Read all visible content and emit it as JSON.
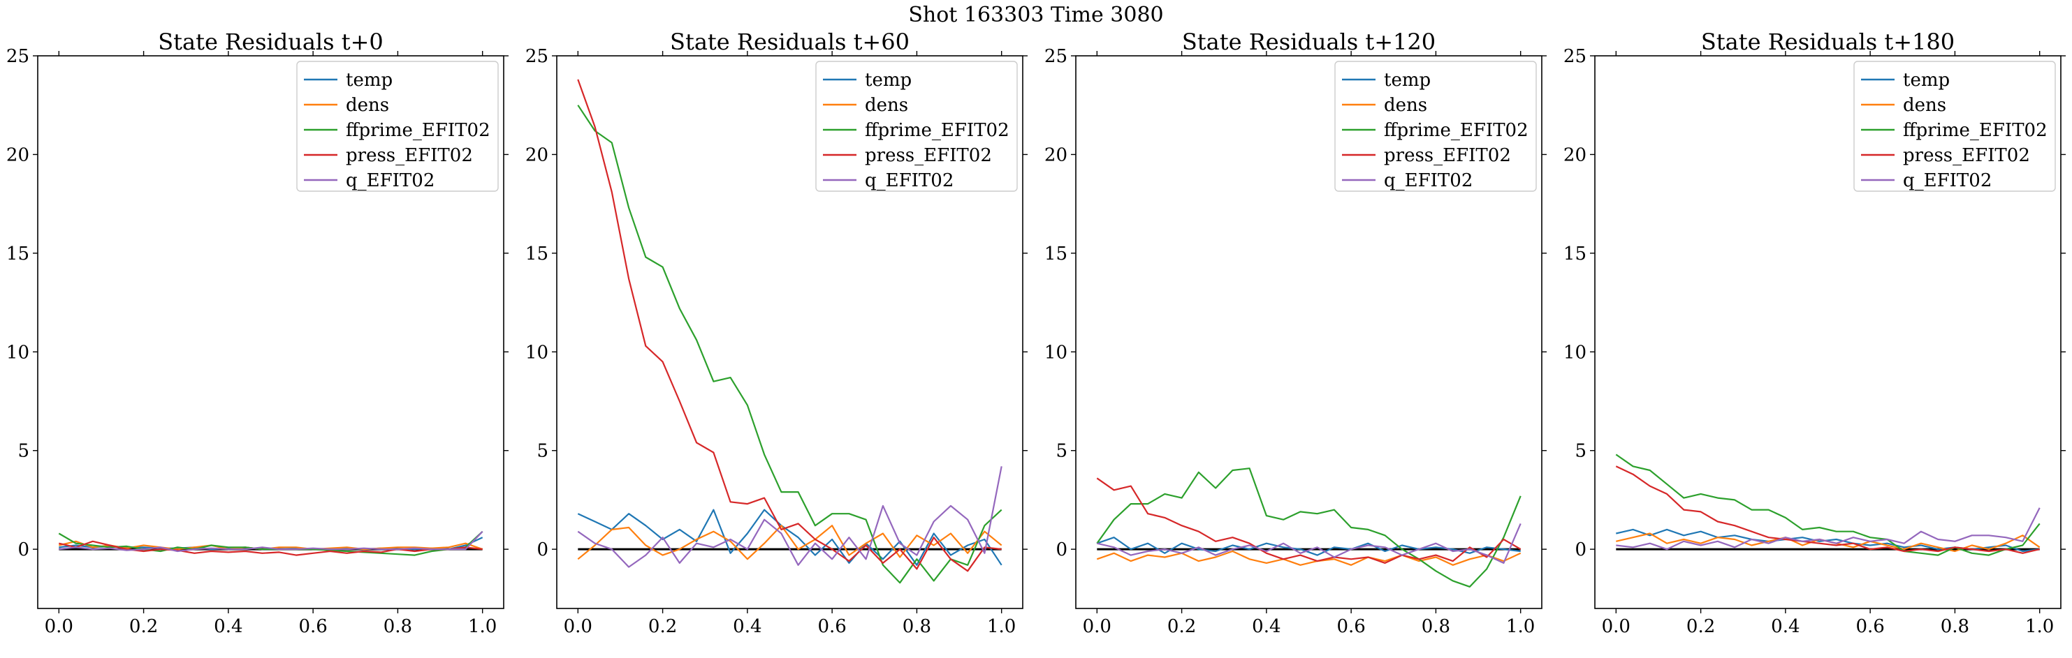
{
  "suptitle": "Shot 163303   Time 3080",
  "colors": {
    "temp": "#1f77b4",
    "dens": "#ff7f0e",
    "ffprime_EFIT02": "#2ca02c",
    "press_EFIT02": "#d62728",
    "q_EFIT02": "#9467bd",
    "zero_line": "#000000"
  },
  "chart_data": [
    {
      "type": "line",
      "title": "State Residuals t+0",
      "xlabel": "",
      "ylabel": "",
      "xlim": [
        -0.05,
        1.05
      ],
      "ylim": [
        -3,
        25
      ],
      "xticks": [
        "0.0",
        "0.2",
        "0.4",
        "0.6",
        "0.8",
        "1.0"
      ],
      "yticks": [
        "0",
        "5",
        "10",
        "15",
        "20",
        "25"
      ],
      "grid": false,
      "legend": "top-right",
      "x": [
        0.0,
        0.04,
        0.08,
        0.12,
        0.16,
        0.2,
        0.24,
        0.28,
        0.32,
        0.36,
        0.4,
        0.44,
        0.48,
        0.52,
        0.56,
        0.6,
        0.64,
        0.68,
        0.72,
        0.76,
        0.8,
        0.84,
        0.88,
        0.92,
        0.96,
        1.0
      ],
      "series": [
        {
          "name": "temp",
          "values": [
            0.1,
            0.2,
            0.1,
            0.15,
            0.1,
            0.1,
            0.05,
            0.05,
            0.1,
            0.0,
            0.05,
            0.1,
            0.0,
            0.0,
            0.05,
            0.0,
            0.0,
            0.05,
            0.0,
            0.05,
            0.0,
            0.0,
            0.05,
            0.0,
            0.2,
            0.6
          ]
        },
        {
          "name": "dens",
          "values": [
            0.2,
            0.4,
            0.1,
            0.2,
            0.05,
            0.2,
            0.1,
            0.0,
            0.1,
            0.2,
            0.0,
            0.1,
            0.0,
            0.1,
            0.1,
            0.0,
            0.05,
            0.1,
            0.0,
            0.05,
            0.1,
            0.1,
            0.05,
            0.1,
            0.3,
            0.0
          ]
        },
        {
          "name": "ffprime_EFIT02",
          "values": [
            0.8,
            0.3,
            0.2,
            0.1,
            0.15,
            0.0,
            -0.1,
            0.1,
            0.0,
            0.2,
            0.1,
            0.1,
            0.0,
            0.0,
            0.0,
            0.0,
            -0.05,
            -0.1,
            -0.15,
            -0.2,
            -0.25,
            -0.3,
            -0.1,
            0.0,
            0.1,
            0.9
          ]
        },
        {
          "name": "press_EFIT02",
          "values": [
            0.3,
            0.1,
            0.4,
            0.2,
            0.0,
            -0.1,
            0.0,
            -0.05,
            -0.2,
            -0.1,
            -0.15,
            -0.1,
            -0.2,
            -0.15,
            -0.3,
            -0.2,
            -0.1,
            -0.2,
            -0.1,
            -0.15,
            0.0,
            -0.1,
            0.0,
            0.0,
            0.1,
            0.0
          ]
        },
        {
          "name": "q_EFIT02",
          "values": [
            0.0,
            0.1,
            0.0,
            0.05,
            -0.05,
            0.0,
            0.1,
            -0.1,
            0.0,
            0.05,
            0.0,
            0.0,
            0.1,
            0.0,
            0.0,
            0.05,
            0.0,
            0.0,
            0.05,
            0.0,
            0.0,
            0.05,
            0.0,
            0.0,
            0.0,
            0.9
          ]
        }
      ]
    },
    {
      "type": "line",
      "title": "State Residuals t+60",
      "xlabel": "",
      "ylabel": "",
      "xlim": [
        -0.05,
        1.05
      ],
      "ylim": [
        -3,
        25
      ],
      "xticks": [
        "0.0",
        "0.2",
        "0.4",
        "0.6",
        "0.8",
        "1.0"
      ],
      "yticks": [
        "0",
        "5",
        "10",
        "15",
        "20",
        "25"
      ],
      "grid": false,
      "legend": "top-right",
      "x": [
        0.0,
        0.04,
        0.08,
        0.12,
        0.16,
        0.2,
        0.24,
        0.28,
        0.32,
        0.36,
        0.4,
        0.44,
        0.48,
        0.52,
        0.56,
        0.6,
        0.64,
        0.68,
        0.72,
        0.76,
        0.8,
        0.84,
        0.88,
        0.92,
        0.96,
        1.0
      ],
      "series": [
        {
          "name": "temp",
          "values": [
            1.8,
            1.4,
            1.0,
            1.8,
            1.2,
            0.5,
            1.0,
            0.4,
            2.0,
            -0.2,
            0.8,
            2.0,
            1.2,
            0.6,
            -0.3,
            0.5,
            -0.7,
            0.3,
            -0.5,
            0.4,
            -0.8,
            0.8,
            -0.3,
            0.2,
            0.5,
            -0.8
          ]
        },
        {
          "name": "dens",
          "values": [
            -0.5,
            0.2,
            1.0,
            1.1,
            0.2,
            -0.3,
            0.0,
            0.5,
            0.9,
            0.4,
            -0.5,
            0.3,
            1.2,
            0.0,
            0.5,
            1.2,
            -0.3,
            0.3,
            0.8,
            -0.4,
            0.7,
            0.2,
            0.8,
            -0.2,
            0.9,
            0.2
          ]
        },
        {
          "name": "ffprime_EFIT02",
          "values": [
            22.5,
            21.2,
            20.6,
            17.3,
            14.8,
            14.3,
            12.2,
            10.6,
            8.5,
            8.7,
            7.3,
            4.8,
            2.9,
            2.9,
            1.2,
            1.8,
            1.8,
            1.5,
            -0.8,
            -1.7,
            -0.5,
            -1.6,
            -0.5,
            -0.8,
            1.2,
            2.0
          ]
        },
        {
          "name": "press_EFIT02",
          "values": [
            23.8,
            21.4,
            18.1,
            13.7,
            10.3,
            9.5,
            7.5,
            5.4,
            4.9,
            2.4,
            2.3,
            2.6,
            1.0,
            1.3,
            0.5,
            0.0,
            -0.6,
            0.2,
            -0.7,
            0.0,
            -1.0,
            0.6,
            -0.5,
            -1.1,
            0.1,
            0.0
          ]
        },
        {
          "name": "q_EFIT02",
          "values": [
            0.9,
            0.3,
            0.0,
            -0.9,
            -0.3,
            0.6,
            -0.7,
            0.3,
            0.1,
            0.5,
            0.0,
            1.5,
            0.8,
            -0.8,
            0.3,
            -0.5,
            0.6,
            -0.5,
            2.2,
            0.3,
            -0.3,
            1.4,
            2.2,
            1.5,
            -0.2,
            4.2
          ]
        }
      ]
    },
    {
      "type": "line",
      "title": "State Residuals t+120",
      "xlabel": "",
      "ylabel": "",
      "xlim": [
        -0.05,
        1.05
      ],
      "ylim": [
        -3,
        25
      ],
      "xticks": [
        "0.0",
        "0.2",
        "0.4",
        "0.6",
        "0.8",
        "1.0"
      ],
      "yticks": [
        "0",
        "5",
        "10",
        "15",
        "20",
        "25"
      ],
      "grid": false,
      "legend": "top-right",
      "x": [
        0.0,
        0.04,
        0.08,
        0.12,
        0.16,
        0.2,
        0.24,
        0.28,
        0.32,
        0.36,
        0.4,
        0.44,
        0.48,
        0.52,
        0.56,
        0.6,
        0.64,
        0.68,
        0.72,
        0.76,
        0.8,
        0.84,
        0.88,
        0.92,
        0.96,
        1.0
      ],
      "series": [
        {
          "name": "temp",
          "values": [
            0.3,
            0.6,
            0.0,
            0.3,
            -0.2,
            0.3,
            0.0,
            -0.1,
            0.2,
            0.0,
            0.3,
            0.1,
            0.0,
            -0.3,
            0.1,
            0.0,
            0.3,
            -0.1,
            0.2,
            0.0,
            0.1,
            0.0,
            -0.2,
            0.1,
            0.0,
            -0.1
          ]
        },
        {
          "name": "dens",
          "values": [
            -0.5,
            -0.2,
            -0.6,
            -0.3,
            -0.4,
            -0.2,
            -0.6,
            -0.4,
            -0.1,
            -0.5,
            -0.7,
            -0.5,
            -0.8,
            -0.6,
            -0.5,
            -0.8,
            -0.4,
            -0.6,
            -0.3,
            -0.6,
            -0.4,
            -0.8,
            -0.5,
            -0.3,
            -0.6,
            -0.2
          ]
        },
        {
          "name": "ffprime_EFIT02",
          "values": [
            0.3,
            1.5,
            2.3,
            2.3,
            2.8,
            2.6,
            3.9,
            3.1,
            4.0,
            4.1,
            1.7,
            1.5,
            1.9,
            1.8,
            2.0,
            1.1,
            1.0,
            0.7,
            0.0,
            -0.5,
            -1.1,
            -1.6,
            -1.9,
            -1.0,
            0.6,
            2.7
          ]
        },
        {
          "name": "press_EFIT02",
          "values": [
            3.6,
            3.0,
            3.2,
            1.8,
            1.6,
            1.2,
            0.9,
            0.4,
            0.6,
            0.3,
            -0.2,
            -0.5,
            -0.3,
            -0.6,
            -0.4,
            -0.5,
            -0.4,
            -0.7,
            -0.3,
            -0.5,
            -0.3,
            -0.6,
            0.1,
            -0.4,
            0.5,
            0.0
          ]
        },
        {
          "name": "q_EFIT02",
          "values": [
            0.3,
            0.1,
            -0.3,
            -0.1,
            0.0,
            -0.2,
            0.1,
            -0.3,
            0.0,
            0.2,
            -0.1,
            0.3,
            -0.2,
            0.1,
            -0.4,
            0.0,
            0.2,
            0.1,
            -0.3,
            0.0,
            0.3,
            -0.1,
            0.0,
            -0.3,
            -0.7,
            1.3
          ]
        }
      ]
    },
    {
      "type": "line",
      "title": "State Residuals t+180",
      "xlabel": "",
      "ylabel": "",
      "xlim": [
        -0.05,
        1.05
      ],
      "ylim": [
        -3,
        25
      ],
      "xticks": [
        "0.0",
        "0.2",
        "0.4",
        "0.6",
        "0.8",
        "1.0"
      ],
      "yticks": [
        "0",
        "5",
        "10",
        "15",
        "20",
        "25"
      ],
      "grid": false,
      "legend": "top-right",
      "x": [
        0.0,
        0.04,
        0.08,
        0.12,
        0.16,
        0.2,
        0.24,
        0.28,
        0.32,
        0.36,
        0.4,
        0.44,
        0.48,
        0.52,
        0.56,
        0.6,
        0.64,
        0.68,
        0.72,
        0.76,
        0.8,
        0.84,
        0.88,
        0.92,
        0.96,
        1.0
      ],
      "series": [
        {
          "name": "temp",
          "values": [
            0.8,
            1.0,
            0.7,
            1.0,
            0.7,
            0.9,
            0.6,
            0.7,
            0.5,
            0.4,
            0.5,
            0.6,
            0.4,
            0.5,
            0.3,
            0.2,
            0.3,
            0.1,
            0.2,
            0.0,
            0.1,
            0.0,
            0.1,
            0.2,
            -0.1,
            0.0
          ]
        },
        {
          "name": "dens",
          "values": [
            0.4,
            0.6,
            0.8,
            0.3,
            0.5,
            0.3,
            0.6,
            0.5,
            0.2,
            0.4,
            0.6,
            0.2,
            0.5,
            0.3,
            0.1,
            0.4,
            0.2,
            0.0,
            0.3,
            0.1,
            -0.1,
            0.2,
            0.0,
            0.3,
            0.7,
            0.1
          ]
        },
        {
          "name": "ffprime_EFIT02",
          "values": [
            4.8,
            4.2,
            4.0,
            3.3,
            2.6,
            2.8,
            2.6,
            2.5,
            2.0,
            2.0,
            1.6,
            1.0,
            1.1,
            0.9,
            0.9,
            0.6,
            0.5,
            -0.1,
            -0.2,
            -0.3,
            0.1,
            -0.2,
            -0.3,
            0.0,
            0.2,
            1.3
          ]
        },
        {
          "name": "press_EFIT02",
          "values": [
            4.2,
            3.8,
            3.2,
            2.8,
            2.0,
            1.9,
            1.4,
            1.2,
            0.9,
            0.6,
            0.5,
            0.4,
            0.3,
            0.2,
            0.3,
            0.0,
            0.1,
            -0.1,
            0.0,
            -0.1,
            0.1,
            0.0,
            -0.1,
            0.0,
            -0.2,
            0.0
          ]
        },
        {
          "name": "q_EFIT02",
          "values": [
            0.2,
            0.1,
            0.3,
            0.0,
            0.4,
            0.2,
            0.4,
            0.1,
            0.5,
            0.3,
            0.6,
            0.4,
            0.5,
            0.3,
            0.6,
            0.4,
            0.5,
            0.3,
            0.9,
            0.5,
            0.4,
            0.7,
            0.7,
            0.6,
            0.4,
            2.1
          ]
        }
      ]
    }
  ]
}
